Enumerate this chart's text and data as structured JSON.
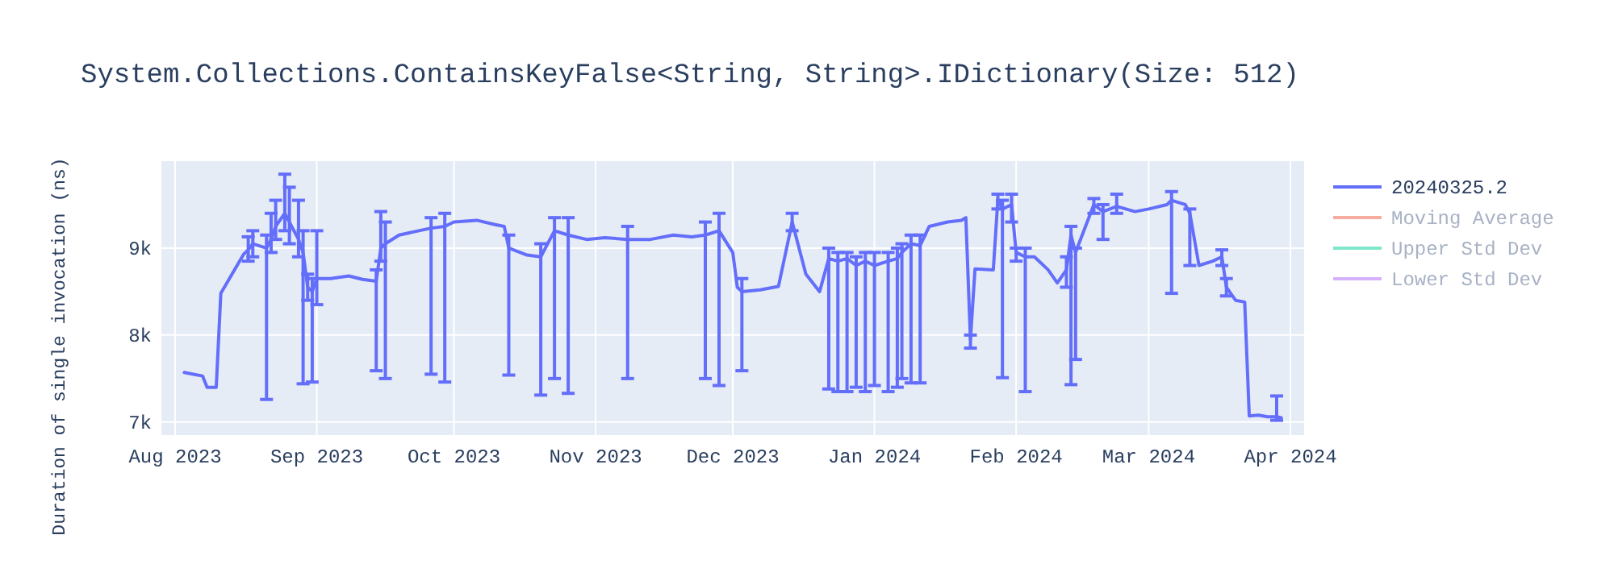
{
  "chart_data": {
    "type": "line",
    "title": "System.Collections.ContainsKeyFalse<String, String>.IDictionary(Size: 512)",
    "ylabel": "Duration of single invocation (ns)",
    "xlim": [
      "2023-07-29",
      "2024-04-04"
    ],
    "xticks": [
      {
        "value": "2023-08-01",
        "label": "Aug 2023"
      },
      {
        "value": "2023-09-01",
        "label": "Sep 2023"
      },
      {
        "value": "2023-10-01",
        "label": "Oct 2023"
      },
      {
        "value": "2023-11-01",
        "label": "Nov 2023"
      },
      {
        "value": "2023-12-01",
        "label": "Dec 2023"
      },
      {
        "value": "2024-01-01",
        "label": "Jan 2024"
      },
      {
        "value": "2024-02-01",
        "label": "Feb 2024"
      },
      {
        "value": "2024-03-01",
        "label": "Mar 2024"
      },
      {
        "value": "2024-04-01",
        "label": "Apr 2024"
      }
    ],
    "ylim": [
      6850,
      10000
    ],
    "yticks": [
      {
        "value": 7000,
        "label": "7k"
      },
      {
        "value": 8000,
        "label": "8k"
      },
      {
        "value": 9000,
        "label": "9k"
      }
    ],
    "grid": true,
    "legend": "right",
    "marker": "none",
    "line_style": "solid",
    "series": [
      {
        "name": "20240325.2",
        "color": "#636efa",
        "x": [
          "2023-08-03",
          "2023-08-05",
          "2023-08-07",
          "2023-08-08",
          "2023-08-10",
          "2023-08-11",
          "2023-08-16",
          "2023-08-17",
          "2023-08-18",
          "2023-08-21",
          "2023-08-22",
          "2023-08-23",
          "2023-08-25",
          "2023-08-26",
          "2023-08-28",
          "2023-08-29",
          "2023-08-30",
          "2023-08-31",
          "2023-09-01",
          "2023-09-04",
          "2023-09-08",
          "2023-09-11",
          "2023-09-14",
          "2023-09-15",
          "2023-09-16",
          "2023-09-19",
          "2023-09-26",
          "2023-09-29",
          "2023-10-01",
          "2023-10-06",
          "2023-10-10",
          "2023-10-12",
          "2023-10-13",
          "2023-10-17",
          "2023-10-20",
          "2023-10-23",
          "2023-10-26",
          "2023-10-30",
          "2023-11-03",
          "2023-11-08",
          "2023-11-13",
          "2023-11-18",
          "2023-11-22",
          "2023-11-25",
          "2023-11-28",
          "2023-12-01",
          "2023-12-02",
          "2023-12-03",
          "2023-12-07",
          "2023-12-11",
          "2023-12-14",
          "2023-12-17",
          "2023-12-20",
          "2023-12-22",
          "2023-12-24",
          "2023-12-26",
          "2023-12-28",
          "2023-12-30",
          "2024-01-01",
          "2024-01-04",
          "2024-01-06",
          "2024-01-07",
          "2024-01-09",
          "2024-01-11",
          "2024-01-13",
          "2024-01-17",
          "2024-01-20",
          "2024-01-21",
          "2024-01-22",
          "2024-01-23",
          "2024-01-27",
          "2024-01-28",
          "2024-01-29",
          "2024-01-31",
          "2024-02-01",
          "2024-02-03",
          "2024-02-05",
          "2024-02-08",
          "2024-02-10",
          "2024-02-12",
          "2024-02-13",
          "2024-02-14",
          "2024-02-18",
          "2024-02-20",
          "2024-02-23",
          "2024-02-27",
          "2024-03-01",
          "2024-03-05",
          "2024-03-06",
          "2024-03-09",
          "2024-03-10",
          "2024-03-12",
          "2024-03-15",
          "2024-03-17",
          "2024-03-18",
          "2024-03-20",
          "2024-03-22",
          "2024-03-23",
          "2024-03-25",
          "2024-03-27",
          "2024-03-29",
          "2024-03-30"
        ],
        "values": [
          7570,
          7550,
          7530,
          7400,
          7400,
          8480,
          8930,
          8980,
          9050,
          9000,
          9100,
          9250,
          9400,
          9300,
          9100,
          8950,
          8550,
          8500,
          8650,
          8650,
          8680,
          8640,
          8620,
          9000,
          9050,
          9150,
          9230,
          9250,
          9300,
          9320,
          9270,
          9250,
          9000,
          8920,
          8900,
          9200,
          9150,
          9100,
          9120,
          9100,
          9100,
          9150,
          9130,
          9150,
          9200,
          8950,
          8550,
          8500,
          8520,
          8560,
          9300,
          8700,
          8500,
          8880,
          8850,
          8880,
          8800,
          8850,
          8800,
          8850,
          8880,
          8950,
          9050,
          9030,
          9250,
          9300,
          9320,
          9350,
          7950,
          8760,
          8750,
          9560,
          9450,
          9500,
          8950,
          8900,
          8900,
          8750,
          8600,
          8750,
          9150,
          8950,
          9500,
          9420,
          9480,
          9420,
          9450,
          9500,
          9550,
          9500,
          9400,
          8800,
          8850,
          8900,
          8550,
          8400,
          8380,
          7070,
          7080,
          7060,
          7060,
          7050
        ],
        "errors": [
          null,
          null,
          null,
          null,
          null,
          null,
          null,
          [
            8850,
            9130
          ],
          [
            8900,
            9200
          ],
          [
            7260,
            9150
          ],
          [
            8950,
            9400
          ],
          [
            9100,
            9550
          ],
          [
            9200,
            9850
          ],
          [
            9050,
            9700
          ],
          [
            8900,
            9550
          ],
          [
            7440,
            9200
          ],
          [
            8400,
            8700
          ],
          [
            7460,
            8650
          ],
          [
            8350,
            9200
          ],
          null,
          null,
          null,
          [
            7590,
            8750
          ],
          [
            8850,
            9420
          ],
          [
            7500,
            9300
          ],
          null,
          [
            7550,
            9350
          ],
          [
            7460,
            9400
          ],
          null,
          null,
          null,
          null,
          [
            7540,
            9150
          ],
          null,
          [
            7310,
            9050
          ],
          [
            7500,
            9350
          ],
          [
            7330,
            9350
          ],
          null,
          null,
          [
            7500,
            9250
          ],
          null,
          null,
          null,
          [
            7500,
            9300
          ],
          [
            7420,
            9400
          ],
          null,
          null,
          [
            7590,
            8650
          ],
          null,
          null,
          [
            9200,
            9400
          ],
          null,
          null,
          [
            7380,
            9000
          ],
          [
            7350,
            8950
          ],
          [
            7350,
            8950
          ],
          [
            7400,
            8900
          ],
          [
            7350,
            8950
          ],
          [
            7420,
            8950
          ],
          [
            7350,
            8950
          ],
          [
            7400,
            9000
          ],
          [
            7500,
            9050
          ],
          [
            7450,
            9150
          ],
          [
            7450,
            9150
          ],
          null,
          null,
          null,
          null,
          [
            7850,
            8000
          ],
          null,
          null,
          [
            9450,
            9620
          ],
          [
            7510,
            9550
          ],
          [
            9300,
            9620
          ],
          [
            8850,
            9000
          ],
          [
            7350,
            9000
          ],
          null,
          null,
          null,
          [
            8550,
            8900
          ],
          [
            7430,
            9250
          ],
          [
            7720,
            9000
          ],
          [
            9400,
            9570
          ],
          [
            9100,
            9500
          ],
          [
            9400,
            9620
          ],
          null,
          null,
          null,
          [
            8480,
            9650
          ],
          null,
          [
            8800,
            9450
          ],
          null,
          null,
          [
            8800,
            8980
          ],
          [
            8450,
            8650
          ],
          null,
          null,
          null,
          null,
          null,
          [
            7020,
            7300
          ],
          null
        ]
      },
      {
        "name": "Moving Average",
        "color": "#f6ad9f"
      },
      {
        "name": "Upper Std Dev",
        "color": "#7fe5cb"
      },
      {
        "name": "Lower Std Dev",
        "color": "#d5b1fd"
      }
    ]
  }
}
